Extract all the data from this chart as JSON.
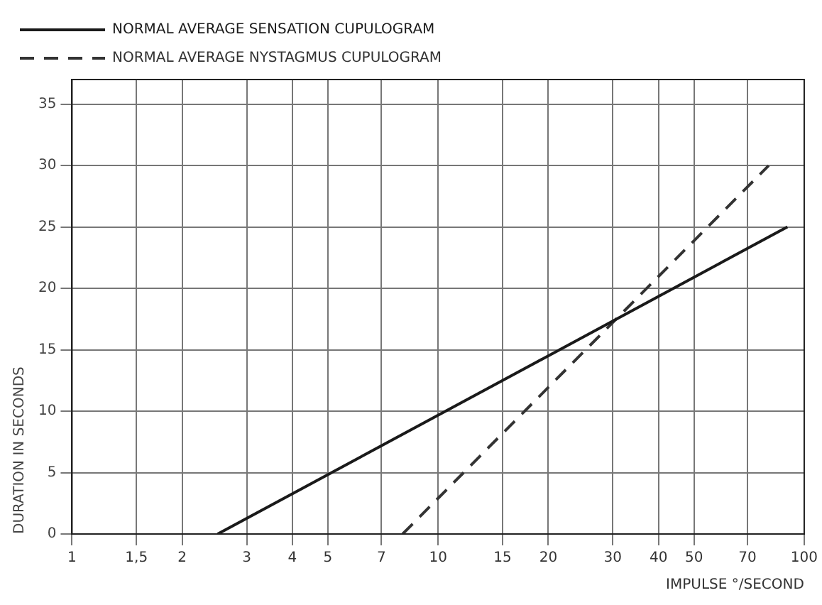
{
  "chart_data": {
    "type": "line",
    "xlabel": "IMPULSE °/SECOND",
    "ylabel": "DURATION IN SECONDS",
    "log": "x",
    "grid": true,
    "legend": "top",
    "marker": "none",
    "xlim": [
      1,
      100
    ],
    "xticks": [
      1,
      {
        "value": 1.5,
        "label": "1,5"
      },
      2,
      3,
      4,
      5,
      7,
      10,
      15,
      20,
      30,
      40,
      50,
      70,
      100
    ],
    "ylim": [
      0,
      37
    ],
    "yticks": [
      0,
      5,
      10,
      15,
      20,
      25,
      30,
      35
    ],
    "series": [
      {
        "name": "NORMAL AVERAGE SENSATION CUPULOGRAM",
        "color": "#1a1a1a",
        "line_style": "solid",
        "x": [
          2.5,
          90
        ],
        "values": [
          0,
          25
        ]
      },
      {
        "name": "NORMAL AVERAGE NYSTAGMUS CUPULOGRAM",
        "color": "#333333",
        "line_style": "dashed",
        "x": [
          8,
          80
        ],
        "values": [
          0,
          30
        ]
      }
    ]
  }
}
